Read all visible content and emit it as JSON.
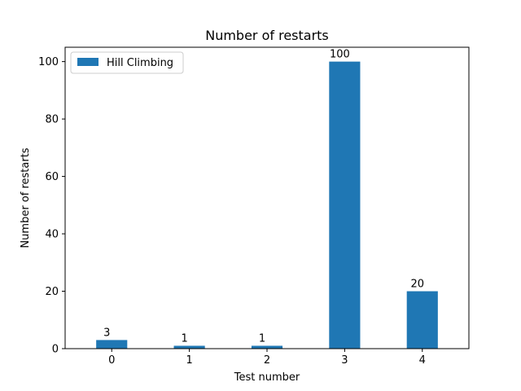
{
  "chart_data": {
    "type": "bar",
    "title": "Number of restarts",
    "xlabel": "Test number",
    "ylabel": "Number of restarts",
    "categories": [
      "0",
      "1",
      "2",
      "3",
      "4"
    ],
    "series": [
      {
        "name": "Hill Climbing",
        "values": [
          3,
          1,
          1,
          100,
          20
        ],
        "color": "#1f77b4"
      }
    ],
    "data_labels": [
      "3",
      "1",
      "1",
      "100",
      "20"
    ],
    "yticks": [
      0,
      20,
      40,
      60,
      80,
      100
    ],
    "ylim": [
      0,
      105
    ],
    "grid": false,
    "legend_position": "top-left"
  }
}
